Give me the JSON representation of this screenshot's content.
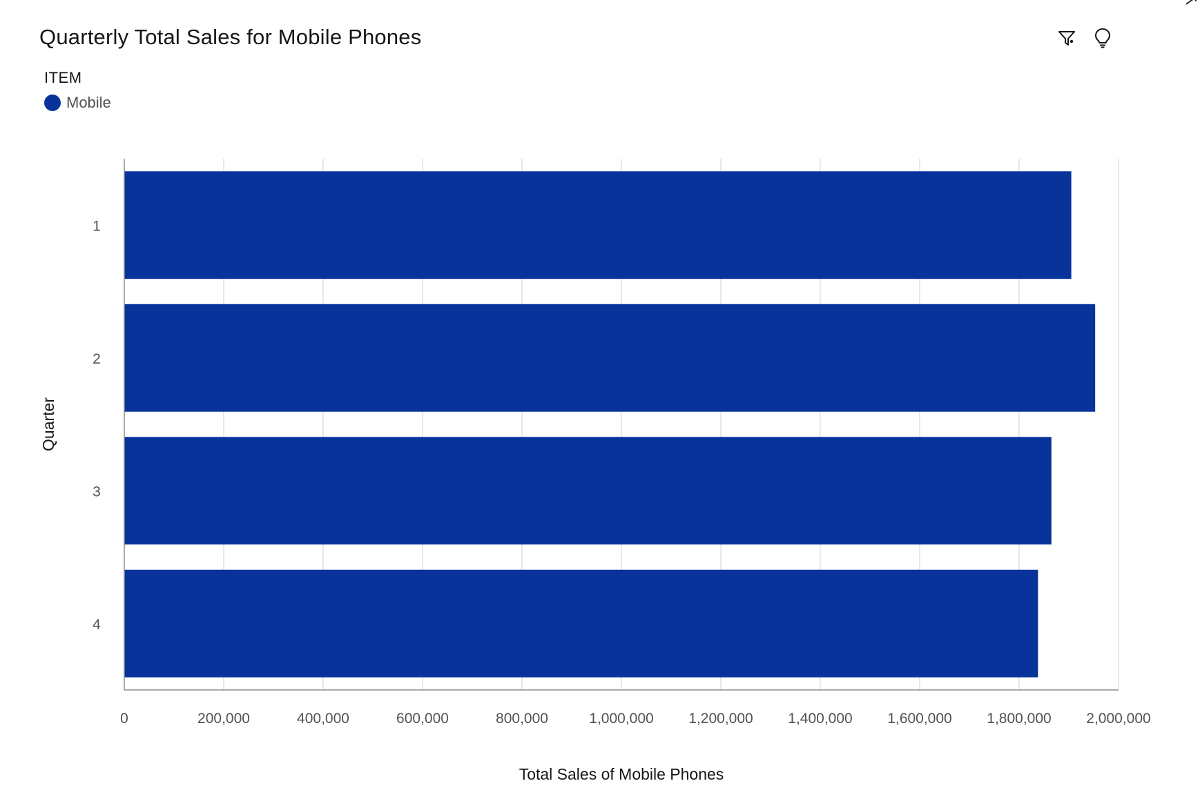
{
  "header": {
    "title": "Quarterly Total Sales for Mobile Phones"
  },
  "toolbar": {
    "filter_icon": "filter-icon",
    "insight_icon": "lightbulb-icon"
  },
  "legend": {
    "title": "ITEM",
    "items": [
      {
        "label": "Mobile",
        "color": "#07339b"
      }
    ]
  },
  "chart_data": {
    "type": "bar",
    "orientation": "horizontal",
    "title": "Quarterly Total Sales for Mobile Phones",
    "xlabel": "Total Sales of Mobile Phones",
    "ylabel": "Quarter",
    "categories": [
      "1",
      "2",
      "3",
      "4"
    ],
    "series": [
      {
        "name": "Mobile",
        "color": "#07339b",
        "values": [
          1905000,
          1953000,
          1865000,
          1838000
        ]
      }
    ],
    "xlim": [
      0,
      2000000
    ],
    "xticks": [
      0,
      200000,
      400000,
      600000,
      800000,
      1000000,
      1200000,
      1400000,
      1600000,
      1800000,
      2000000
    ],
    "xtick_labels": [
      "0",
      "200,000",
      "400,000",
      "600,000",
      "800,000",
      "1,000,000",
      "1,200,000",
      "1,400,000",
      "1,600,000",
      "1,800,000",
      "2,000,000"
    ],
    "grid": true,
    "legend_position": "top-left"
  }
}
